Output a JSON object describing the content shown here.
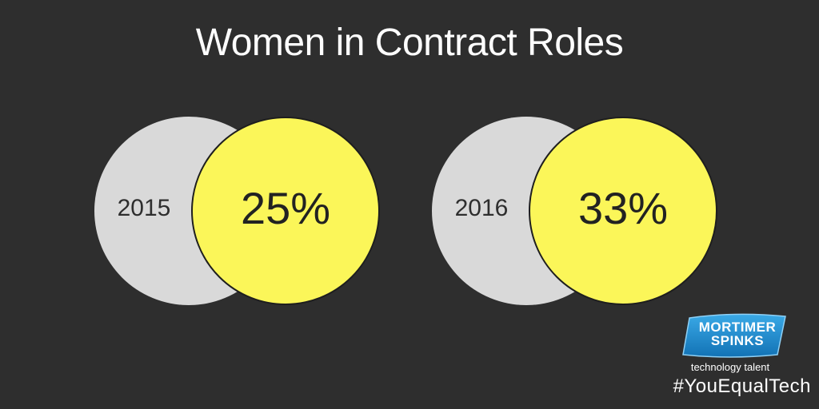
{
  "title": "Women in Contract Roles",
  "stats": [
    {
      "year": "2015",
      "percent": "25%"
    },
    {
      "year": "2016",
      "percent": "33%"
    }
  ],
  "logo": {
    "line1": "MORTIMER",
    "line2": "SPINKS",
    "tagline": "technology talent"
  },
  "hashtag": "#YouEqualTech",
  "colors": {
    "background": "#2e2e2e",
    "circle_back": "#d9d9d9",
    "circle_front": "#fbf659",
    "logo_blue": "#1f8fd0"
  }
}
